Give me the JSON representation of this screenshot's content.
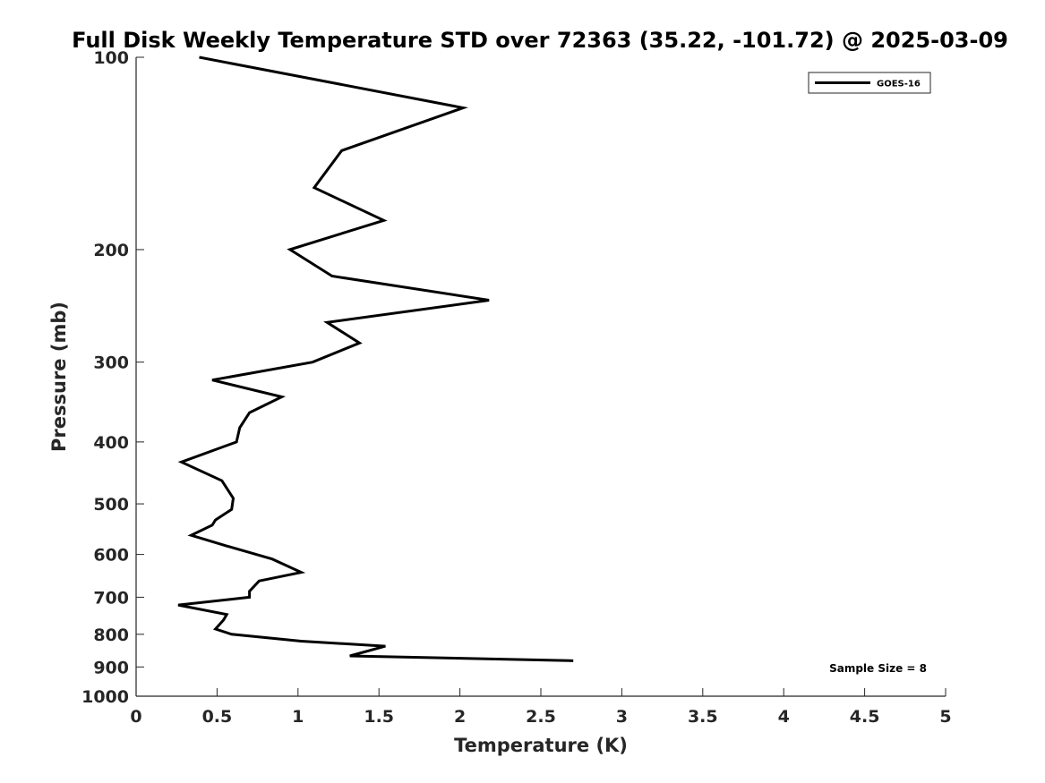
{
  "chart_data": {
    "type": "line",
    "title": "Full Disk Weekly Temperature STD over 72363 (35.22, -101.72) @ 2025-03-09",
    "xlabel": "Temperature (K)",
    "ylabel": "Pressure (mb)",
    "xlim": [
      0,
      5
    ],
    "ylim": [
      100,
      1000
    ],
    "yscale": "log",
    "yreversed": true,
    "x_ticks": [
      0,
      0.5,
      1,
      1.5,
      2,
      2.5,
      3,
      3.5,
      4,
      4.5,
      5
    ],
    "x_tick_labels": [
      "0",
      "0.5",
      "1",
      "1.5",
      "2",
      "2.5",
      "3",
      "3.5",
      "4",
      "4.5",
      "5"
    ],
    "y_ticks": [
      100,
      200,
      300,
      400,
      500,
      600,
      700,
      800,
      900,
      1000
    ],
    "y_tick_labels": [
      "100",
      "200",
      "300",
      "400",
      "500",
      "600",
      "700",
      "800",
      "900",
      "1000"
    ],
    "grid": false,
    "legend_position": "top-right",
    "annotation": "Sample Size = 8",
    "series": [
      {
        "name": "GOES-16",
        "color": "#000000",
        "points": [
          {
            "x": 0.39,
            "p": 100
          },
          {
            "x": 2.02,
            "p": 120
          },
          {
            "x": 1.27,
            "p": 140
          },
          {
            "x": 1.1,
            "p": 160
          },
          {
            "x": 1.53,
            "p": 180
          },
          {
            "x": 0.95,
            "p": 200
          },
          {
            "x": 1.21,
            "p": 220
          },
          {
            "x": 2.18,
            "p": 240
          },
          {
            "x": 1.18,
            "p": 260
          },
          {
            "x": 1.38,
            "p": 280
          },
          {
            "x": 1.09,
            "p": 300
          },
          {
            "x": 0.47,
            "p": 320
          },
          {
            "x": 0.9,
            "p": 340
          },
          {
            "x": 0.7,
            "p": 360
          },
          {
            "x": 0.64,
            "p": 380
          },
          {
            "x": 0.62,
            "p": 400
          },
          {
            "x": 0.28,
            "p": 430
          },
          {
            "x": 0.53,
            "p": 460
          },
          {
            "x": 0.6,
            "p": 490
          },
          {
            "x": 0.59,
            "p": 510
          },
          {
            "x": 0.49,
            "p": 530
          },
          {
            "x": 0.47,
            "p": 540
          },
          {
            "x": 0.34,
            "p": 560
          },
          {
            "x": 0.54,
            "p": 580
          },
          {
            "x": 0.84,
            "p": 610
          },
          {
            "x": 1.02,
            "p": 640
          },
          {
            "x": 0.76,
            "p": 660
          },
          {
            "x": 0.7,
            "p": 685
          },
          {
            "x": 0.7,
            "p": 700
          },
          {
            "x": 0.26,
            "p": 720
          },
          {
            "x": 0.56,
            "p": 745
          },
          {
            "x": 0.54,
            "p": 760
          },
          {
            "x": 0.49,
            "p": 785
          },
          {
            "x": 0.59,
            "p": 800
          },
          {
            "x": 1.02,
            "p": 820
          },
          {
            "x": 1.54,
            "p": 835
          },
          {
            "x": 1.32,
            "p": 865
          },
          {
            "x": 2.7,
            "p": 880
          }
        ]
      }
    ]
  }
}
